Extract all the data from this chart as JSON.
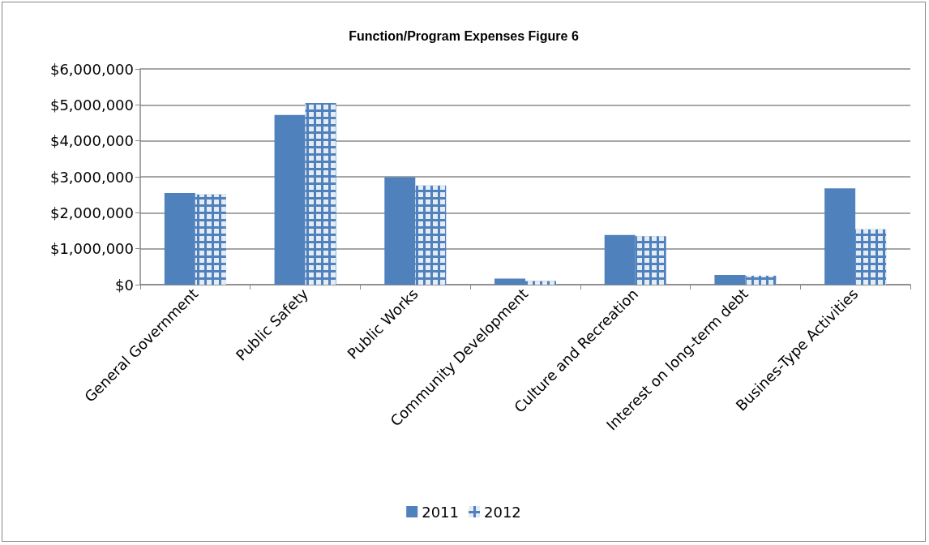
{
  "chart_data": {
    "type": "bar",
    "title": "Function/Program Expenses Figure 6",
    "categories": [
      "General Government",
      "Public Safety",
      "Public Works",
      "Community Development",
      "Culture and Recreation",
      "Interest on long-term debt",
      "Busines-Type Activities"
    ],
    "series": [
      {
        "name": "2011",
        "color": "#4f81bd",
        "values": [
          2550000,
          4720000,
          2990000,
          170000,
          1380000,
          270000,
          2680000
        ]
      },
      {
        "name": "2012",
        "color": "#4f81bd",
        "values": [
          2510000,
          5050000,
          2760000,
          100000,
          1350000,
          250000,
          1540000
        ]
      }
    ],
    "ylim": [
      0,
      6000000
    ],
    "yticks": [
      {
        "value": 0,
        "label": "$0"
      },
      {
        "value": 1000000,
        "label": "$1,000,000"
      },
      {
        "value": 2000000,
        "label": "$2,000,000"
      },
      {
        "value": 3000000,
        "label": "$3,000,000"
      },
      {
        "value": 4000000,
        "label": "$4,000,000"
      },
      {
        "value": 5000000,
        "label": "$5,000,000"
      },
      {
        "value": 6000000,
        "label": "$6,000,000"
      }
    ],
    "grid": "y",
    "legend": "bottom"
  }
}
